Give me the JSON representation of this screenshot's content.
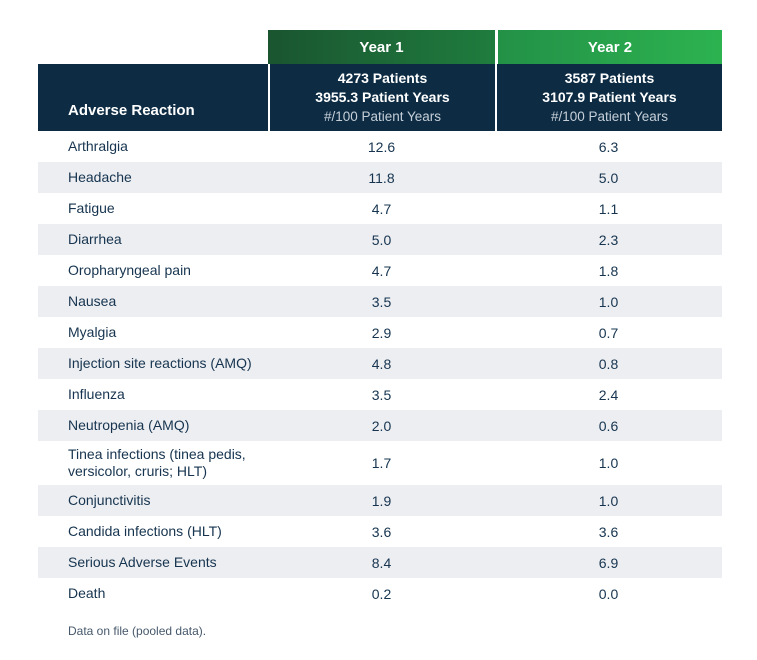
{
  "table": {
    "columns": {
      "reaction_header": "Adverse Reaction",
      "year1": {
        "label": "Year 1",
        "patients": "4273 Patients",
        "patient_years": "3955.3 Patient Years",
        "rate_unit": "#/100 Patient Years",
        "gradient_start": "#1a5530",
        "gradient_end": "#1f7c3e"
      },
      "year2": {
        "label": "Year 2",
        "patients": "3587 Patients",
        "patient_years": "3107.9 Patient Years",
        "rate_unit": "#/100 Patient Years",
        "gradient_start": "#239147",
        "gradient_end": "#2db350"
      }
    },
    "rows": [
      {
        "label": "Arthralgia",
        "year1": "12.6",
        "year2": "6.3"
      },
      {
        "label": "Headache",
        "year1": "11.8",
        "year2": "5.0"
      },
      {
        "label": "Fatigue",
        "year1": "4.7",
        "year2": "1.1"
      },
      {
        "label": "Diarrhea",
        "year1": "5.0",
        "year2": "2.3"
      },
      {
        "label": "Oropharyngeal pain",
        "year1": "4.7",
        "year2": "1.8"
      },
      {
        "label": "Nausea",
        "year1": "3.5",
        "year2": "1.0"
      },
      {
        "label": "Myalgia",
        "year1": "2.9",
        "year2": "0.7"
      },
      {
        "label": "Injection site reactions (AMQ)",
        "year1": "4.8",
        "year2": "0.8"
      },
      {
        "label": "Influenza",
        "year1": "3.5",
        "year2": "2.4"
      },
      {
        "label": "Neutropenia (AMQ)",
        "year1": "2.0",
        "year2": "0.6"
      },
      {
        "label": "Tinea infections (tinea pedis, versicolor, cruris; HLT)",
        "year1": "1.7",
        "year2": "1.0"
      },
      {
        "label": "Conjunctivitis",
        "year1": "1.9",
        "year2": "1.0"
      },
      {
        "label": "Candida infections (HLT)",
        "year1": "3.6",
        "year2": "3.6"
      },
      {
        "label": "Serious Adverse Events",
        "year1": "8.4",
        "year2": "6.9"
      },
      {
        "label": "Death",
        "year1": "0.2",
        "year2": "0.0"
      }
    ],
    "footnote": "Data on file (pooled data).",
    "colors": {
      "header_navy": "#0d2c44",
      "row_alt": "#edeef2",
      "row_text": "#16344f",
      "rate_unit_text": "#c6cfd8",
      "footnote_text": "#46586b"
    }
  },
  "chart_data": {
    "type": "table",
    "title": "",
    "categories": [
      "Arthralgia",
      "Headache",
      "Fatigue",
      "Diarrhea",
      "Oropharyngeal pain",
      "Nausea",
      "Myalgia",
      "Injection site reactions (AMQ)",
      "Influenza",
      "Neutropenia (AMQ)",
      "Tinea infections (tinea pedis, versicolor, cruris; HLT)",
      "Conjunctivitis",
      "Candida infections (HLT)",
      "Serious Adverse Events",
      "Death"
    ],
    "series": [
      {
        "name": "Year 1 (4273 Patients, 3955.3 Patient Years, #/100 Patient Years)",
        "values": [
          12.6,
          11.8,
          4.7,
          5.0,
          4.7,
          3.5,
          2.9,
          4.8,
          3.5,
          2.0,
          1.7,
          1.9,
          3.6,
          8.4,
          0.2
        ]
      },
      {
        "name": "Year 2 (3587 Patients, 3107.9 Patient Years, #/100 Patient Years)",
        "values": [
          6.3,
          5.0,
          1.1,
          2.3,
          1.8,
          1.0,
          0.7,
          0.8,
          2.4,
          0.6,
          1.0,
          1.0,
          3.6,
          6.9,
          0.0
        ]
      }
    ],
    "row_header_label": "Adverse Reaction",
    "notes": "Data on file (pooled data)."
  }
}
